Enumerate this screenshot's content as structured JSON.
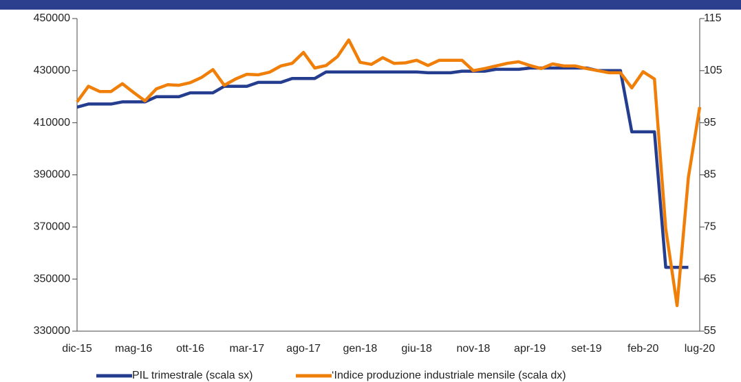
{
  "chart_data": {
    "type": "line",
    "categories": [
      "dic-15",
      null,
      null,
      null,
      null,
      "mag-16",
      null,
      null,
      null,
      null,
      "ott-16",
      null,
      null,
      null,
      null,
      "mar-17",
      null,
      null,
      null,
      null,
      "ago-17",
      null,
      null,
      null,
      null,
      "gen-18",
      null,
      null,
      null,
      null,
      "giu-18",
      null,
      null,
      null,
      null,
      "nov-18",
      null,
      null,
      null,
      null,
      "apr-19",
      null,
      null,
      null,
      null,
      "set-19",
      null,
      null,
      null,
      null,
      "feb-20",
      null,
      null,
      null,
      null,
      "lug-20"
    ],
    "series": [
      {
        "name": "PIL trimestrale (scala sx)",
        "color": "#253d8f",
        "axis": "y",
        "values": [
          416000,
          417200,
          417200,
          417200,
          418000,
          418000,
          418000,
          420000,
          420000,
          420000,
          421500,
          421500,
          421500,
          424000,
          424000,
          424000,
          425500,
          425500,
          425500,
          427000,
          427000,
          427000,
          429500,
          429500,
          429500,
          429500,
          429500,
          429500,
          429500,
          429500,
          429500,
          429200,
          429200,
          429200,
          429800,
          429800,
          429800,
          430500,
          430500,
          430500,
          431000,
          431000,
          431000,
          431000,
          431000,
          431000,
          430000,
          430000,
          430000,
          406500,
          406500,
          406500,
          354500,
          354500,
          354500,
          null
        ]
      },
      {
        "name": "‘Indice produzione industriale mensile (scala dx)",
        "color": "#f07f09",
        "axis": "y2",
        "values": [
          99,
          102,
          101,
          101,
          102.5,
          100.8,
          99.2,
          101.5,
          102.3,
          102.2,
          102.7,
          103.7,
          105.2,
          102.2,
          103.4,
          104.3,
          104.2,
          104.7,
          105.9,
          106.4,
          108.5,
          105.5,
          106,
          107.7,
          110.9,
          106.6,
          106.2,
          107.5,
          106.4,
          106.5,
          107,
          106,
          107,
          107,
          107,
          105,
          105.4,
          105.9,
          106.4,
          106.7,
          106,
          105.4,
          106.3,
          105.9,
          105.9,
          105.4,
          105,
          104.6,
          104.6,
          101.7,
          104.8,
          103.4,
          74.7,
          59.9,
          84.5,
          98
        ]
      }
    ],
    "ylim": [
      330000,
      450000
    ],
    "yticks": [
      330000,
      350000,
      370000,
      390000,
      410000,
      430000,
      450000
    ],
    "y2lim": [
      55,
      115
    ],
    "y2ticks": [
      55,
      65,
      75,
      85,
      95,
      105,
      115
    ],
    "legend": "bottom"
  }
}
